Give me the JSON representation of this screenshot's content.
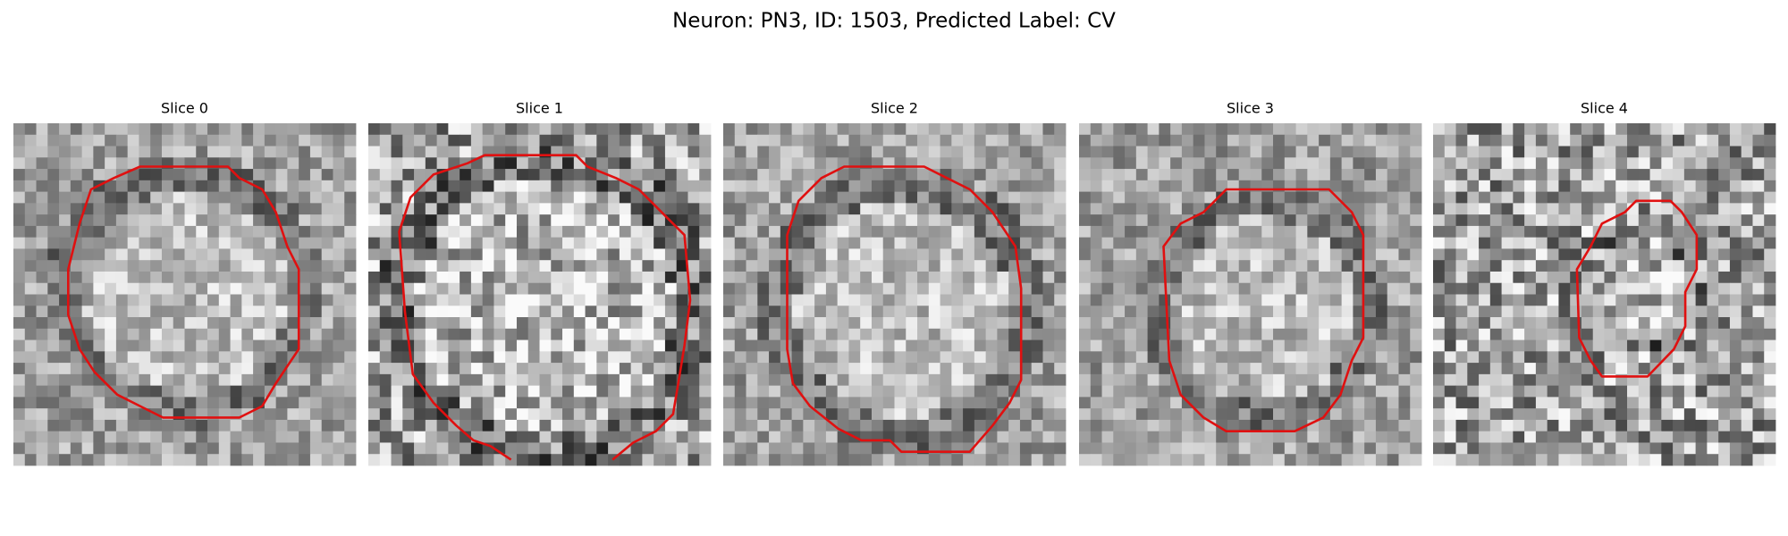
{
  "figure": {
    "title": "Neuron: PN3, ID: 1503, Predicted Label: CV",
    "panels": [
      {
        "title": "Slice 0"
      },
      {
        "title": "Slice 1"
      },
      {
        "title": "Slice 2"
      },
      {
        "title": "Slice 3"
      },
      {
        "title": "Slice 4"
      }
    ]
  }
}
